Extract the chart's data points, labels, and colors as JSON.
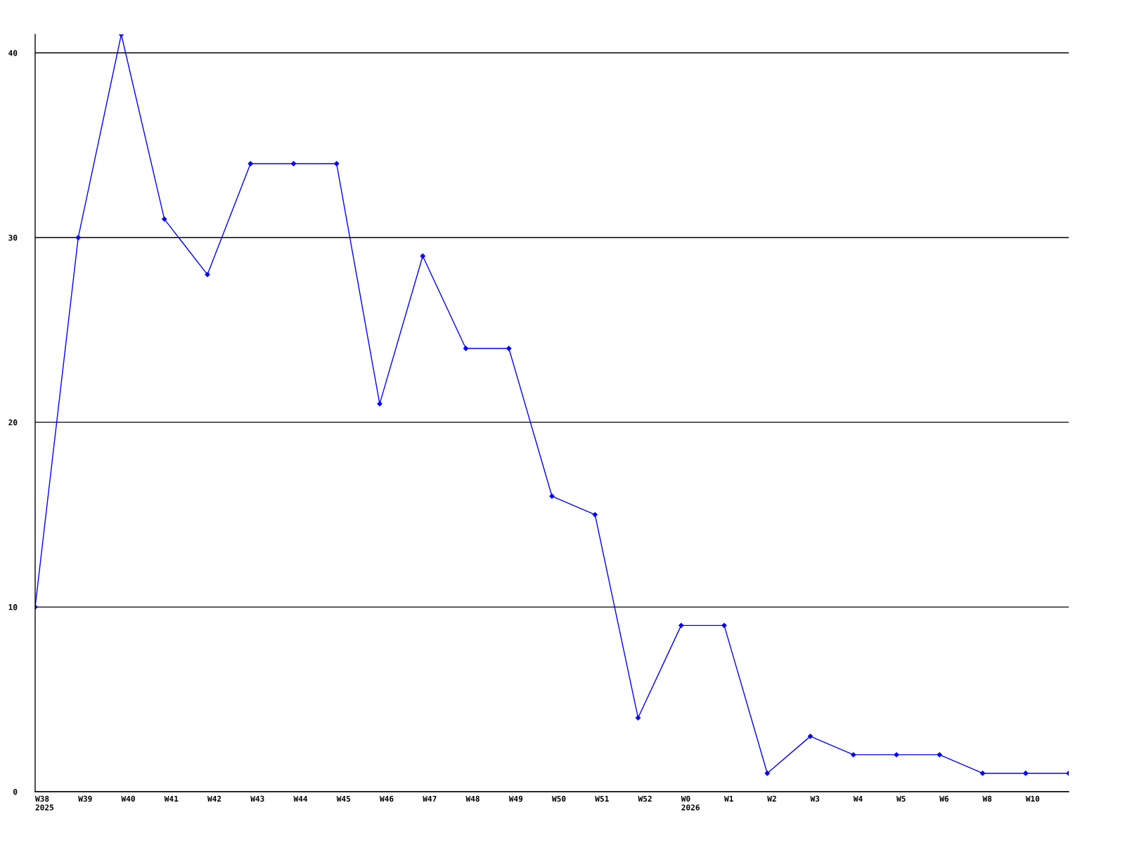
{
  "chart_data": {
    "type": "line",
    "categories": [
      "W38\n2025",
      "W39",
      "W40",
      "W41",
      "W42",
      "W43",
      "W44",
      "W45",
      "W46",
      "W47",
      "W48",
      "W49",
      "W50",
      "W51",
      "W52",
      "W0\n2026",
      "W1",
      "W2",
      "W3",
      "W4",
      "W5",
      "W6",
      "W8",
      "W10",
      null
    ],
    "series": [
      {
        "color": "#0000ff",
        "values": [
          10,
          30,
          41,
          31,
          28,
          34,
          34,
          34,
          21,
          29,
          24,
          24,
          16,
          15,
          4,
          9,
          9,
          1,
          3,
          2,
          2,
          2,
          1,
          1,
          1
        ]
      }
    ],
    "ylim": [
      0,
      41
    ],
    "yticks": [
      0,
      10,
      20,
      30,
      40
    ],
    "grid": "y",
    "marker": "diamond",
    "line_style": "solid"
  }
}
